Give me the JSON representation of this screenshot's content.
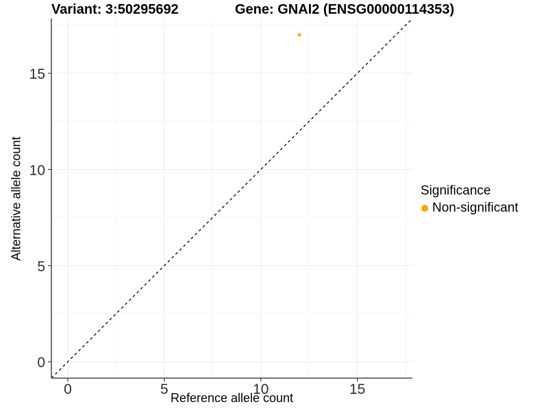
{
  "chart_data": {
    "type": "scatter",
    "title_left": "Variant: 3:50295692",
    "title_right": "Gene: GNAI2 (ENSG00000114353)",
    "xlabel": "Reference allele count",
    "ylabel": "Alternative allele count",
    "xlim": [
      -0.85,
      17.85
    ],
    "ylim": [
      -0.85,
      17.85
    ],
    "x_ticks": [
      0,
      5,
      10,
      15
    ],
    "y_ticks": [
      0,
      5,
      10,
      15
    ],
    "x_minor_ticks": [
      2.5,
      7.5,
      12.5,
      17.5
    ],
    "y_minor_ticks": [
      2.5,
      7.5,
      12.5,
      17.5
    ],
    "grid": "major+minor",
    "points": [
      {
        "x": 12,
        "y": 17,
        "series": "Non-significant"
      }
    ],
    "reference_line": {
      "slope": 1,
      "intercept": 0,
      "style": "dashed",
      "color": "#000000"
    },
    "legend": {
      "title": "Significance",
      "position": "right",
      "entries": [
        {
          "label": "Non-significant",
          "color": "#FFA500"
        }
      ]
    },
    "colors": {
      "background": "#FFFFFF",
      "axis_line": "#474747",
      "tick_mark": "#3C3C3C",
      "tick_label": "#2E2E2E",
      "grid_major": "#EBEBEB",
      "grid_minor": "#F5F5F5",
      "point": "#FFA500"
    }
  }
}
